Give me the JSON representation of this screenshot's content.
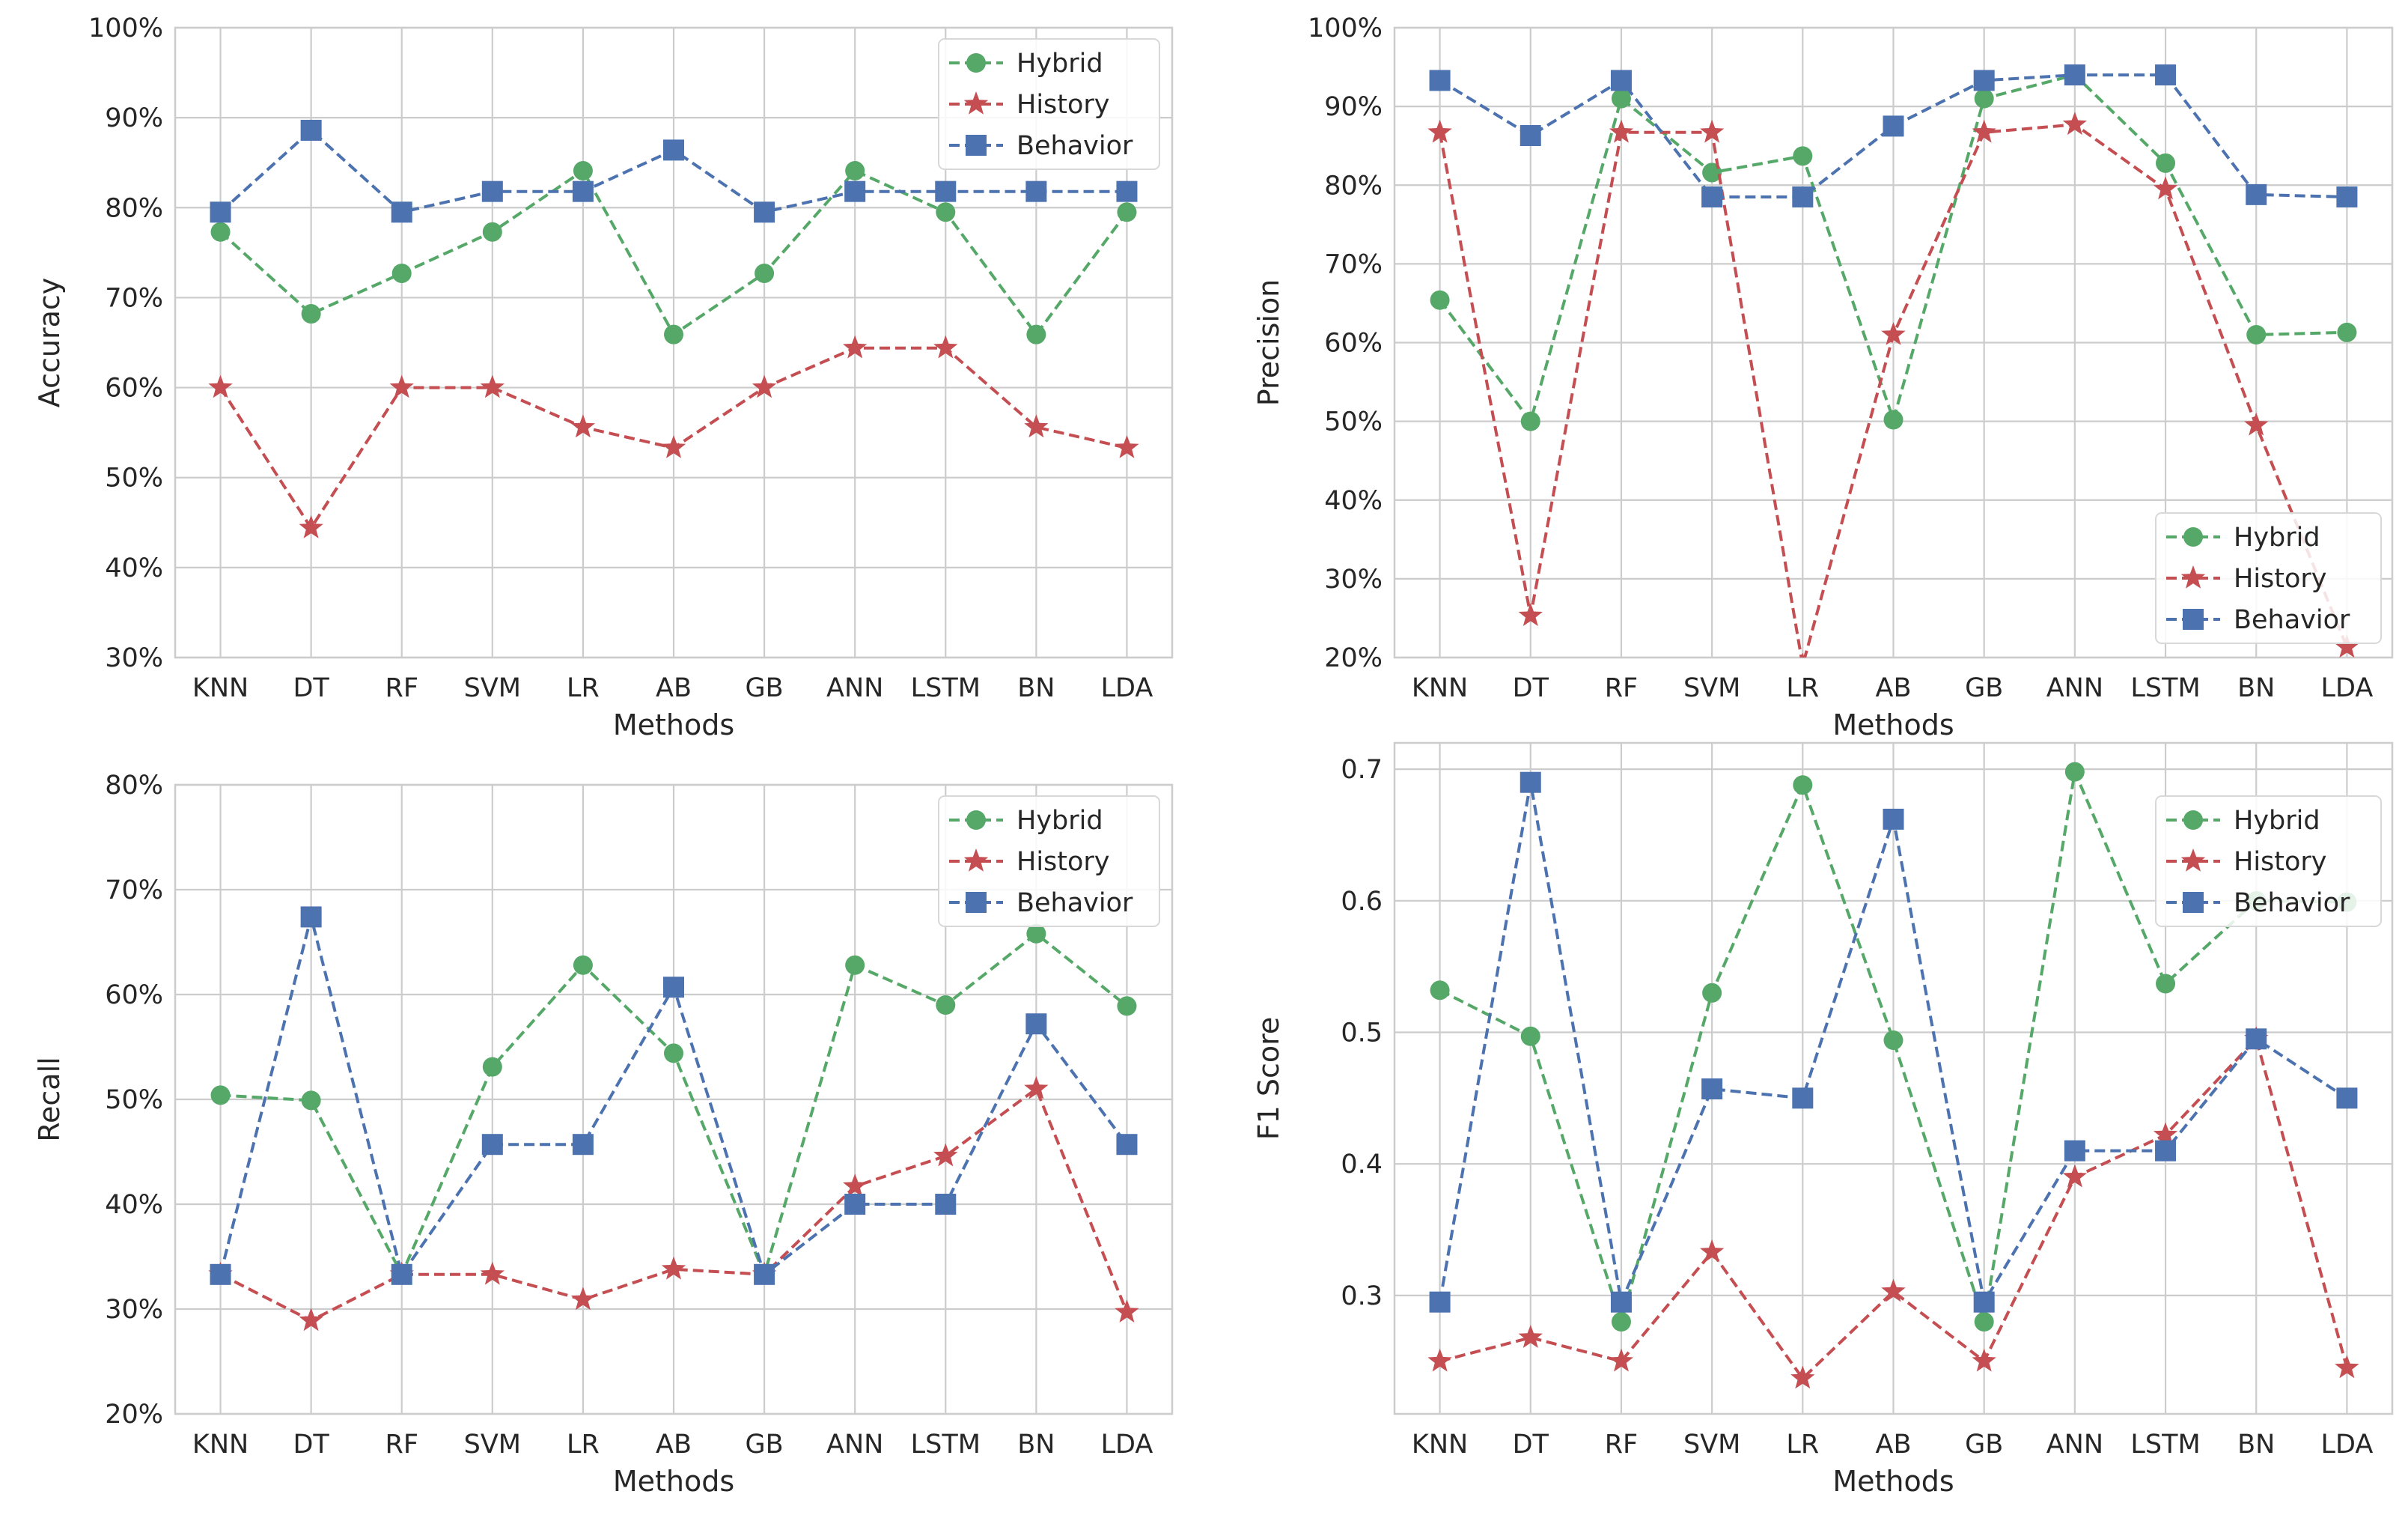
{
  "chart_data": [
    {
      "type": "line",
      "name": "accuracy",
      "xlabel": "Methods",
      "ylabel": "Accuracy",
      "ylim": [
        30,
        100
      ],
      "yticks": [
        30,
        40,
        50,
        60,
        70,
        80,
        90,
        100
      ],
      "ytick_labels": [
        "30%",
        "40%",
        "50%",
        "60%",
        "70%",
        "80%",
        "90%",
        "100%"
      ],
      "categories": [
        "KNN",
        "DT",
        "RF",
        "SVM",
        "LR",
        "AB",
        "GB",
        "ANN",
        "LSTM",
        "BN",
        "LDA"
      ],
      "grid": true,
      "legend_position": "top-right",
      "series": [
        {
          "name": "Hybrid",
          "color": "#55a868",
          "marker": "circle",
          "values": [
            77.3,
            68.2,
            72.7,
            77.3,
            84.1,
            65.9,
            72.7,
            84.1,
            79.5,
            65.9,
            79.5
          ]
        },
        {
          "name": "History",
          "color": "#c44e52",
          "marker": "star",
          "values": [
            60.0,
            44.4,
            60.0,
            60.0,
            55.6,
            53.3,
            60.0,
            64.4,
            64.4,
            55.6,
            53.3
          ]
        },
        {
          "name": "Behavior",
          "color": "#4c72b0",
          "marker": "square",
          "values": [
            79.5,
            88.6,
            79.5,
            81.8,
            81.8,
            86.4,
            79.5,
            81.8,
            81.8,
            81.8,
            81.8
          ]
        }
      ]
    },
    {
      "type": "line",
      "name": "precision",
      "xlabel": "Methods",
      "ylabel": "Precision",
      "ylim": [
        20,
        100
      ],
      "yticks": [
        20,
        30,
        40,
        50,
        60,
        70,
        80,
        90,
        100
      ],
      "ytick_labels": [
        "20%",
        "30%",
        "40%",
        "50%",
        "60%",
        "70%",
        "80%",
        "90%",
        "100%"
      ],
      "categories": [
        "KNN",
        "DT",
        "RF",
        "SVM",
        "LR",
        "AB",
        "GB",
        "ANN",
        "LSTM",
        "BN",
        "LDA"
      ],
      "grid": true,
      "legend_position": "bottom-right",
      "series": [
        {
          "name": "Hybrid",
          "color": "#55a868",
          "marker": "circle",
          "values": [
            65.4,
            50.0,
            91.0,
            81.6,
            83.7,
            50.2,
            91.0,
            94.0,
            82.8,
            61.0,
            61.3
          ]
        },
        {
          "name": "History",
          "color": "#c44e52",
          "marker": "star",
          "values": [
            86.7,
            25.3,
            86.7,
            86.7,
            19.0,
            61.0,
            86.7,
            87.7,
            79.5,
            49.5,
            21.3
          ]
        },
        {
          "name": "Behavior",
          "color": "#4c72b0",
          "marker": "square",
          "values": [
            93.3,
            86.3,
            93.3,
            78.5,
            78.5,
            87.5,
            93.3,
            94.0,
            94.0,
            78.8,
            78.5
          ]
        }
      ]
    },
    {
      "type": "line",
      "name": "recall",
      "xlabel": "Methods",
      "ylabel": "Recall",
      "ylim": [
        20,
        80
      ],
      "yticks": [
        20,
        30,
        40,
        50,
        60,
        70,
        80
      ],
      "ytick_labels": [
        "20%",
        "30%",
        "40%",
        "50%",
        "60%",
        "70%",
        "80%"
      ],
      "categories": [
        "KNN",
        "DT",
        "RF",
        "SVM",
        "LR",
        "AB",
        "GB",
        "ANN",
        "LSTM",
        "BN",
        "LDA"
      ],
      "grid": true,
      "legend_position": "top-right",
      "series": [
        {
          "name": "Hybrid",
          "color": "#55a868",
          "marker": "circle",
          "values": [
            50.4,
            49.9,
            33.3,
            53.1,
            62.8,
            54.4,
            33.3,
            62.8,
            59.0,
            65.8,
            58.9
          ]
        },
        {
          "name": "History",
          "color": "#c44e52",
          "marker": "star",
          "values": [
            33.3,
            28.9,
            33.3,
            33.3,
            30.9,
            33.8,
            33.3,
            41.7,
            44.6,
            51.0,
            29.7
          ]
        },
        {
          "name": "Behavior",
          "color": "#4c72b0",
          "marker": "square",
          "values": [
            33.3,
            67.4,
            33.3,
            45.7,
            45.7,
            60.7,
            33.3,
            40.0,
            40.0,
            57.2,
            45.7
          ]
        }
      ]
    },
    {
      "type": "line",
      "name": "f1",
      "xlabel": "Methods",
      "ylabel": "F1 Score",
      "ylim": [
        0.21,
        0.72
      ],
      "yticks": [
        0.3,
        0.4,
        0.5,
        0.6,
        0.7
      ],
      "ytick_labels": [
        "0.3",
        "0.4",
        "0.5",
        "0.6",
        "0.7"
      ],
      "categories": [
        "KNN",
        "DT",
        "RF",
        "SVM",
        "LR",
        "AB",
        "GB",
        "ANN",
        "LSTM",
        "BN",
        "LDA"
      ],
      "grid": true,
      "legend_position": "top-right",
      "series": [
        {
          "name": "Hybrid",
          "color": "#55a868",
          "marker": "circle",
          "values": [
            0.532,
            0.497,
            0.28,
            0.53,
            0.688,
            0.494,
            0.28,
            0.698,
            0.537,
            0.6,
            0.599
          ]
        },
        {
          "name": "History",
          "color": "#c44e52",
          "marker": "star",
          "values": [
            0.25,
            0.268,
            0.25,
            0.333,
            0.237,
            0.303,
            0.25,
            0.39,
            0.422,
            0.495,
            0.245
          ]
        },
        {
          "name": "Behavior",
          "color": "#4c72b0",
          "marker": "square",
          "values": [
            0.295,
            0.69,
            0.295,
            0.457,
            0.45,
            0.662,
            0.295,
            0.41,
            0.41,
            0.495,
            0.45
          ]
        }
      ]
    }
  ]
}
